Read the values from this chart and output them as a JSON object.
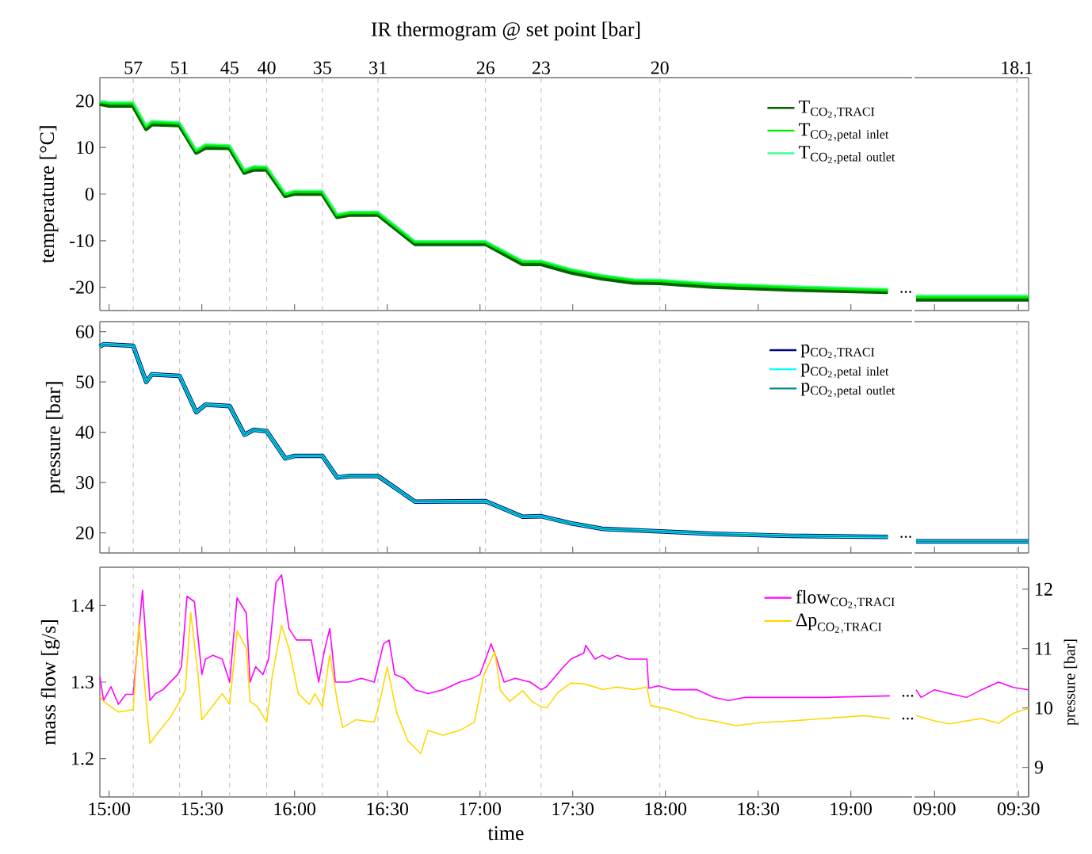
{
  "chart_data": [
    {
      "type": "line",
      "title": "IR thermogram @ set point [bar]",
      "ylabel": "temperature [°C]",
      "xlim": [
        14.95,
        19.33
      ],
      "ylim": [
        -25,
        25
      ],
      "yticks": [
        -20,
        -10,
        0,
        10,
        20
      ],
      "tick_labels": "y",
      "legend": "top right",
      "line_style": "solid",
      "ref_lines": [
        {
          "axis": "x",
          "value": 15.13,
          "color": "#bbbbbb",
          "line_style": "dashed"
        },
        {
          "axis": "x",
          "value": 15.38,
          "color": "#bbbbbb",
          "line_style": "dashed"
        },
        {
          "axis": "x",
          "value": 15.65,
          "color": "#bbbbbb",
          "line_style": "dashed"
        },
        {
          "axis": "x",
          "value": 15.85,
          "color": "#bbbbbb",
          "line_style": "dashed"
        },
        {
          "axis": "x",
          "value": 16.15,
          "color": "#bbbbbb",
          "line_style": "dashed"
        },
        {
          "axis": "x",
          "value": 16.45,
          "color": "#bbbbbb",
          "line_style": "dashed"
        },
        {
          "axis": "x",
          "value": 17.03,
          "color": "#bbbbbb",
          "line_style": "dashed"
        },
        {
          "axis": "x",
          "value": 17.33,
          "color": "#bbbbbb",
          "line_style": "dashed"
        },
        {
          "axis": "x",
          "value": 17.97,
          "color": "#bbbbbb",
          "line_style": "dashed"
        }
      ],
      "annotations": [
        "...",
        {
          "text": "57",
          "x": 15.13,
          "y": 25
        },
        {
          "text": "51",
          "x": 15.38,
          "y": 25
        },
        {
          "text": "45",
          "x": 15.65,
          "y": 25
        },
        {
          "text": "40",
          "x": 15.85,
          "y": 25
        },
        {
          "text": "35",
          "x": 16.15,
          "y": 25
        },
        {
          "text": "31",
          "x": 16.45,
          "y": 25
        },
        {
          "text": "26",
          "x": 17.03,
          "y": 25
        },
        {
          "text": "23",
          "x": 17.33,
          "y": 25
        },
        {
          "text": "20",
          "x": 17.97,
          "y": 25
        }
      ],
      "series": [
        {
          "name": "\\mathrm{T}_{\\mathrm{CO_2,TRACI}}",
          "color": "#006400",
          "x": [
            14.95,
            15.0,
            15.13,
            15.2,
            15.23,
            15.38,
            15.47,
            15.52,
            15.65,
            15.73,
            15.78,
            15.85,
            15.95,
            16.0,
            16.15,
            16.23,
            16.3,
            16.45,
            16.65,
            17.03,
            17.23,
            17.33,
            17.49,
            17.66,
            17.83,
            17.97,
            18.26,
            18.68,
            19.2
          ],
          "values": [
            19.4,
            19.0,
            19.0,
            14.0,
            15.0,
            14.8,
            8.9,
            10.0,
            9.9,
            4.6,
            5.3,
            5.3,
            -0.4,
            0.1,
            0.1,
            -4.9,
            -4.4,
            -4.4,
            -10.7,
            -10.7,
            -15.0,
            -15.0,
            -16.8,
            -18.1,
            -19.0,
            -19.1,
            -19.9,
            -20.5,
            -21.0
          ]
        },
        {
          "name": "\\mathrm{T}_{\\mathrm{CO_2,petal\\ inlet}}",
          "color": "#00ee00",
          "x": [
            14.95,
            15.0,
            15.13,
            15.2,
            15.23,
            15.38,
            15.47,
            15.52,
            15.65,
            15.73,
            15.78,
            15.85,
            15.95,
            16.0,
            16.15,
            16.23,
            16.3,
            16.45,
            16.65,
            17.03,
            17.23,
            17.33,
            17.49,
            17.66,
            17.83,
            17.97,
            18.26,
            18.68,
            19.2
          ],
          "values": [
            19.8,
            19.5,
            19.5,
            14.5,
            15.5,
            15.2,
            9.3,
            10.5,
            10.3,
            5.0,
            5.8,
            5.7,
            0.0,
            0.5,
            0.5,
            -4.5,
            -4.0,
            -4.0,
            -10.3,
            -10.3,
            -14.5,
            -14.5,
            -16.3,
            -17.6,
            -18.5,
            -18.6,
            -19.4,
            -20.0,
            -20.6
          ]
        },
        {
          "name": "\\mathrm{T}_{\\mathrm{CO_2,petal\\ outlet}}",
          "color": "#40ff90",
          "x": [
            14.95,
            15.0,
            15.13,
            15.2,
            15.23,
            15.38,
            15.47,
            15.52,
            15.65,
            15.73,
            15.78,
            15.85,
            15.95,
            16.0,
            16.15,
            16.23,
            16.3,
            16.45,
            16.65,
            17.03,
            17.23,
            17.33,
            17.49,
            17.66,
            17.83,
            17.97,
            18.26,
            18.68,
            19.2
          ],
          "values": [
            20.0,
            19.8,
            19.8,
            14.8,
            15.8,
            15.5,
            9.6,
            10.8,
            10.6,
            5.3,
            6.1,
            6.0,
            0.3,
            0.8,
            0.8,
            -4.2,
            -3.7,
            -3.7,
            -10.0,
            -10.0,
            -14.2,
            -14.2,
            -16.0,
            -17.3,
            -18.2,
            -18.3,
            -19.1,
            -19.7,
            -20.3
          ]
        }
      ]
    },
    {
      "type": "line",
      "xlim": [
        8.88,
        9.56
      ],
      "ylim": [
        -25,
        25
      ],
      "tick_labels": false,
      "line_style": "solid",
      "ref_lines": [
        {
          "axis": "x",
          "value": 9.49,
          "color": "#bbbbbb",
          "line_style": "dashed"
        }
      ],
      "annotations": [
        {
          "text": "18.1",
          "x": 9.49,
          "y": 25
        }
      ],
      "series": [
        {
          "color": "#006400",
          "x": [
            8.89,
            9.56
          ],
          "values": [
            -22.6,
            -22.6
          ]
        },
        {
          "color": "#00ee00",
          "x": [
            8.89,
            9.56
          ],
          "values": [
            -22.1,
            -22.1
          ]
        },
        {
          "color": "#40ff90",
          "x": [
            8.89,
            9.56
          ],
          "values": [
            -21.7,
            -21.7
          ]
        }
      ]
    },
    {
      "type": "line",
      "ylabel": "pressure [bar]",
      "xlim": [
        14.95,
        19.33
      ],
      "ylim": [
        16,
        62
      ],
      "yticks": [
        20,
        30,
        40,
        50,
        60
      ],
      "tick_labels": "y",
      "legend": "top right",
      "line_style": "solid",
      "ref_lines": [
        {
          "axis": "x",
          "value": 15.13,
          "color": "#bbbbbb",
          "line_style": "dashed"
        },
        {
          "axis": "x",
          "value": 15.38,
          "color": "#bbbbbb",
          "line_style": "dashed"
        },
        {
          "axis": "x",
          "value": 15.65,
          "color": "#bbbbbb",
          "line_style": "dashed"
        },
        {
          "axis": "x",
          "value": 15.85,
          "color": "#bbbbbb",
          "line_style": "dashed"
        },
        {
          "axis": "x",
          "value": 16.15,
          "color": "#bbbbbb",
          "line_style": "dashed"
        },
        {
          "axis": "x",
          "value": 16.45,
          "color": "#bbbbbb",
          "line_style": "dashed"
        },
        {
          "axis": "x",
          "value": 17.03,
          "color": "#bbbbbb",
          "line_style": "dashed"
        },
        {
          "axis": "x",
          "value": 17.33,
          "color": "#bbbbbb",
          "line_style": "dashed"
        },
        {
          "axis": "x",
          "value": 17.97,
          "color": "#bbbbbb",
          "line_style": "dashed"
        }
      ],
      "annotations": [
        "..."
      ],
      "series": [
        {
          "name": "\\mathrm{p}_{\\mathrm{CO_2,TRACI}}",
          "color": "#000080",
          "x": [
            14.95,
            14.97,
            15.13,
            15.2,
            15.23,
            15.38,
            15.47,
            15.52,
            15.65,
            15.73,
            15.78,
            15.85,
            15.95,
            16.0,
            16.15,
            16.23,
            16.3,
            16.45,
            16.65,
            17.03,
            17.23,
            17.33,
            17.49,
            17.66,
            17.97,
            18.26,
            18.68,
            19.2
          ],
          "values": [
            57.0,
            57.5,
            57.2,
            50.0,
            51.5,
            51.2,
            44.0,
            45.5,
            45.2,
            39.5,
            40.5,
            40.2,
            34.8,
            35.3,
            35.3,
            31.0,
            31.3,
            31.3,
            26.2,
            26.3,
            23.2,
            23.3,
            21.9,
            20.8,
            20.3,
            19.8,
            19.4,
            19.2
          ]
        },
        {
          "name": "\\mathrm{p}_{\\mathrm{CO_2,petal\\ inlet}}",
          "color": "#00ffff",
          "x": [
            14.95,
            14.97,
            15.13,
            15.2,
            15.23,
            15.38,
            15.47,
            15.52,
            15.65,
            15.73,
            15.78,
            15.85,
            15.95,
            16.0,
            16.15,
            16.23,
            16.3,
            16.45,
            16.65,
            17.03,
            17.23,
            17.33,
            17.49,
            17.66,
            17.97,
            18.26,
            18.68,
            19.2
          ],
          "values": [
            57.0,
            57.5,
            57.2,
            50.0,
            51.5,
            51.2,
            44.0,
            45.5,
            45.2,
            39.5,
            40.5,
            40.2,
            34.8,
            35.3,
            35.3,
            31.0,
            31.3,
            31.3,
            26.2,
            26.3,
            23.2,
            23.3,
            21.9,
            20.8,
            20.3,
            19.8,
            19.4,
            19.2
          ]
        },
        {
          "name": "\\mathrm{p}_{\\mathrm{CO_2,petal\\ outlet}}",
          "color": "#008b8b",
          "x": [
            14.95,
            14.97,
            15.13,
            15.2,
            15.23,
            15.38,
            15.47,
            15.52,
            15.65,
            15.73,
            15.78,
            15.85,
            15.95,
            16.0,
            16.15,
            16.23,
            16.3,
            16.45,
            16.65,
            17.03,
            17.23,
            17.33,
            17.49,
            17.66,
            17.97,
            18.26,
            18.68,
            19.2
          ],
          "values": [
            57.0,
            57.5,
            57.2,
            50.0,
            51.5,
            51.2,
            44.0,
            45.5,
            45.2,
            39.5,
            40.5,
            40.2,
            34.8,
            35.3,
            35.3,
            31.0,
            31.3,
            31.3,
            26.2,
            26.3,
            23.2,
            23.3,
            21.9,
            20.8,
            20.3,
            19.8,
            19.4,
            19.2
          ]
        }
      ]
    },
    {
      "type": "line",
      "xlim": [
        8.88,
        9.56
      ],
      "ylim": [
        16,
        62
      ],
      "tick_labels": false,
      "line_style": "solid",
      "ref_lines": [
        {
          "axis": "x",
          "value": 9.49,
          "color": "#bbbbbb",
          "line_style": "dashed"
        }
      ],
      "series": [
        {
          "color": "#000080",
          "x": [
            8.89,
            9.56
          ],
          "values": [
            18.3,
            18.3
          ]
        },
        {
          "color": "#00ffff",
          "x": [
            8.89,
            9.56
          ],
          "values": [
            18.3,
            18.3
          ]
        },
        {
          "color": "#008b8b",
          "x": [
            8.89,
            9.56
          ],
          "values": [
            18.3,
            18.3
          ]
        }
      ]
    },
    {
      "type": "line",
      "ylabel": "mass flow [g/s]",
      "xlabel": "time",
      "xlim": [
        14.95,
        19.33
      ],
      "ylim": [
        1.15,
        1.45
      ],
      "yticks": [
        1.2,
        1.3,
        1.4
      ],
      "y2lim": [
        8.5,
        12.37
      ],
      "xticks": [
        {
          "value": 15,
          "label": "15:00"
        },
        {
          "value": 15.5,
          "label": "15:30"
        },
        {
          "value": 16,
          "label": "16:00"
        },
        {
          "value": 16.5,
          "label": "16:30"
        },
        {
          "value": 17,
          "label": "17:00"
        },
        {
          "value": 17.5,
          "label": "17:30"
        },
        {
          "value": 18,
          "label": "18:00"
        },
        {
          "value": 18.5,
          "label": "18:30"
        },
        {
          "value": 19,
          "label": "19:00"
        }
      ],
      "legend": "top right",
      "line_style": "solid",
      "ref_lines": [
        {
          "axis": "x",
          "value": 15.13,
          "color": "#bbbbbb",
          "line_style": "dashed"
        },
        {
          "axis": "x",
          "value": 15.38,
          "color": "#bbbbbb",
          "line_style": "dashed"
        },
        {
          "axis": "x",
          "value": 15.65,
          "color": "#bbbbbb",
          "line_style": "dashed"
        },
        {
          "axis": "x",
          "value": 15.85,
          "color": "#bbbbbb",
          "line_style": "dashed"
        },
        {
          "axis": "x",
          "value": 16.15,
          "color": "#bbbbbb",
          "line_style": "dashed"
        },
        {
          "axis": "x",
          "value": 16.45,
          "color": "#bbbbbb",
          "line_style": "dashed"
        },
        {
          "axis": "x",
          "value": 17.03,
          "color": "#bbbbbb",
          "line_style": "dashed"
        },
        {
          "axis": "x",
          "value": 17.33,
          "color": "#bbbbbb",
          "line_style": "dashed"
        },
        {
          "axis": "x",
          "value": 17.97,
          "color": "#bbbbbb",
          "line_style": "dashed"
        }
      ],
      "annotations": [
        "...",
        "..."
      ],
      "series": [
        {
          "name": "\\mathrm{flow}_{\\mathrm{CO_2,TRACI}}",
          "color": "#ff00ff",
          "x": [
            14.95,
            14.97,
            15.01,
            15.05,
            15.09,
            15.13,
            15.18,
            15.22,
            15.25,
            15.29,
            15.33,
            15.37,
            15.39,
            15.42,
            15.46,
            15.5,
            15.52,
            15.56,
            15.61,
            15.65,
            15.69,
            15.74,
            15.76,
            15.79,
            15.83,
            15.86,
            15.9,
            15.93,
            15.97,
            16.01,
            16.09,
            16.13,
            16.16,
            16.19,
            16.22,
            16.29,
            16.36,
            16.43,
            16.48,
            16.51,
            16.54,
            16.59,
            16.65,
            16.72,
            16.8,
            16.89,
            16.96,
            17.0,
            17.06,
            17.09,
            17.13,
            17.19,
            17.27,
            17.33,
            17.36,
            17.44,
            17.49,
            17.56,
            17.57,
            17.62,
            17.66,
            17.7,
            17.74,
            17.8,
            17.9,
            17.91,
            17.96,
            18.04,
            18.17,
            18.26,
            18.34,
            18.43,
            18.51,
            18.68,
            18.85,
            19.21
          ],
          "values": [
            1.307,
            1.276,
            1.294,
            1.271,
            1.284,
            1.284,
            1.42,
            1.276,
            1.285,
            1.29,
            1.3,
            1.31,
            1.32,
            1.412,
            1.405,
            1.31,
            1.33,
            1.335,
            1.33,
            1.3,
            1.41,
            1.39,
            1.3,
            1.32,
            1.31,
            1.33,
            1.43,
            1.44,
            1.37,
            1.355,
            1.355,
            1.3,
            1.34,
            1.37,
            1.3,
            1.3,
            1.305,
            1.3,
            1.35,
            1.355,
            1.31,
            1.305,
            1.29,
            1.285,
            1.29,
            1.3,
            1.305,
            1.31,
            1.35,
            1.33,
            1.3,
            1.305,
            1.3,
            1.29,
            1.294,
            1.317,
            1.33,
            1.338,
            1.348,
            1.33,
            1.335,
            1.33,
            1.335,
            1.33,
            1.33,
            1.292,
            1.295,
            1.29,
            1.29,
            1.28,
            1.276,
            1.28,
            1.28,
            1.28,
            1.28,
            1.282
          ]
        },
        {
          "name": "\\mbox{Δp}_{\\mathrm{CO_2,TRACI}}",
          "color": "#ffd700",
          "axis": "y2",
          "x": [
            14.95,
            14.97,
            15.05,
            15.13,
            15.16,
            15.2,
            15.22,
            15.26,
            15.33,
            15.38,
            15.41,
            15.44,
            15.48,
            15.5,
            15.55,
            15.61,
            15.65,
            15.69,
            15.74,
            15.76,
            15.8,
            15.85,
            15.88,
            15.93,
            15.97,
            16.02,
            16.08,
            16.11,
            16.15,
            16.19,
            16.23,
            16.26,
            16.33,
            16.43,
            16.46,
            16.5,
            16.55,
            16.61,
            16.68,
            16.72,
            16.8,
            16.89,
            16.97,
            17.02,
            17.08,
            17.11,
            17.16,
            17.23,
            17.28,
            17.33,
            17.36,
            17.42,
            17.49,
            17.57,
            17.66,
            17.74,
            17.83,
            17.9,
            17.92,
            18.0,
            18.09,
            18.17,
            18.26,
            18.38,
            18.51,
            18.68,
            18.85,
            19.07,
            19.21
          ],
          "values": [
            10.19,
            10.11,
            9.93,
            9.97,
            11.43,
            10.11,
            9.4,
            9.57,
            9.84,
            10.11,
            10.29,
            11.61,
            10.55,
            9.8,
            10.0,
            10.24,
            10.06,
            11.3,
            11.0,
            10.11,
            10.02,
            9.76,
            10.55,
            11.39,
            11.0,
            10.24,
            10.06,
            10.24,
            10.02,
            10.9,
            10.11,
            9.67,
            9.8,
            9.76,
            10.11,
            10.69,
            9.93,
            9.45,
            9.23,
            9.62,
            9.54,
            9.62,
            9.76,
            10.55,
            10.95,
            10.29,
            10.11,
            10.29,
            10.11,
            10.02,
            10.0,
            10.26,
            10.42,
            10.4,
            10.31,
            10.35,
            10.31,
            10.35,
            10.04,
            9.99,
            9.91,
            9.82,
            9.78,
            9.7,
            9.75,
            9.78,
            9.82,
            9.87,
            9.82
          ]
        }
      ]
    },
    {
      "type": "line",
      "y2label": "pressure [bar]",
      "xlim": [
        8.88,
        9.56
      ],
      "ylim": [
        1.15,
        1.45
      ],
      "y2lim": [
        8.5,
        12.37
      ],
      "y2ticks": [
        9,
        10,
        11,
        12
      ],
      "xticks": [
        {
          "value": 9,
          "label": "09:00"
        },
        {
          "value": 9.5,
          "label": "09:30"
        }
      ],
      "line_style": "solid",
      "ref_lines": [
        {
          "axis": "x",
          "value": 9.49,
          "color": "#bbbbbb",
          "line_style": "dashed"
        }
      ],
      "series": [
        {
          "color": "#ff00ff",
          "x": [
            8.89,
            8.92,
            9.0,
            9.09,
            9.19,
            9.28,
            9.38,
            9.47,
            9.56
          ],
          "values": [
            1.29,
            1.28,
            1.29,
            1.285,
            1.28,
            1.29,
            1.3,
            1.293,
            1.29
          ]
        },
        {
          "color": "#ffd700",
          "axis": "y2",
          "x": [
            8.89,
            9.0,
            9.09,
            9.19,
            9.28,
            9.38,
            9.47,
            9.56
          ],
          "values": [
            9.87,
            9.78,
            9.73,
            9.78,
            9.82,
            9.74,
            9.91,
            9.99
          ]
        }
      ]
    }
  ]
}
